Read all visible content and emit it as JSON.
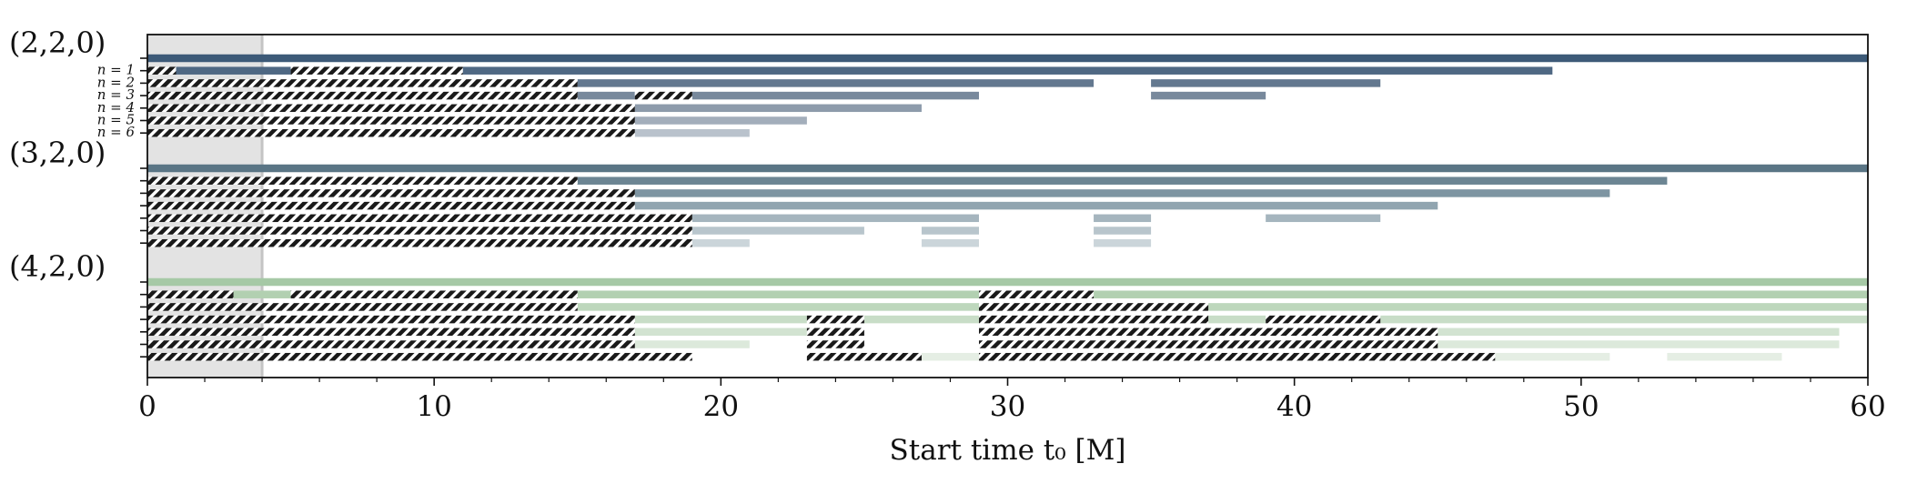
{
  "chart_data": {
    "type": "bar",
    "subtype": "interval-timeline",
    "xlabel": "Start time t₀ [M]",
    "xlim": [
      0,
      60
    ],
    "xticks": [
      0,
      10,
      20,
      30,
      40,
      50,
      60
    ],
    "shaded_region": [
      0,
      4
    ],
    "hatch_color": "#1a1a1a",
    "groups": [
      {
        "label": "(2,2,0)",
        "rows": [
          {
            "label": "",
            "color": "#3d5a78",
            "intervals": [
              [
                0,
                60
              ]
            ],
            "hatched": []
          },
          {
            "label": "n = 1",
            "color": "#4f6883",
            "intervals": [
              [
                1,
                5
              ],
              [
                11,
                49
              ]
            ],
            "hatched": [
              [
                0,
                1
              ],
              [
                5,
                11
              ]
            ]
          },
          {
            "label": "n = 2",
            "color": "#63788f",
            "intervals": [
              [
                15,
                33
              ],
              [
                35,
                43
              ]
            ],
            "hatched": [
              [
                0,
                15
              ]
            ]
          },
          {
            "label": "n = 3",
            "color": "#78899c",
            "intervals": [
              [
                15,
                17
              ],
              [
                19,
                29
              ],
              [
                35,
                39
              ]
            ],
            "hatched": [
              [
                0,
                15
              ],
              [
                17,
                19
              ]
            ]
          },
          {
            "label": "n = 4",
            "color": "#8d9bab",
            "intervals": [
              [
                17,
                27
              ]
            ],
            "hatched": [
              [
                0,
                17
              ]
            ]
          },
          {
            "label": "n = 5",
            "color": "#a3aebb",
            "intervals": [
              [
                17,
                23
              ]
            ],
            "hatched": [
              [
                0,
                17
              ]
            ]
          },
          {
            "label": "n = 6",
            "color": "#b9c2cc",
            "intervals": [
              [
                17,
                21
              ]
            ],
            "hatched": [
              [
                0,
                17
              ]
            ]
          }
        ]
      },
      {
        "label": "(3,2,0)",
        "rows": [
          {
            "label": "",
            "color": "#5a7585",
            "intervals": [
              [
                0,
                60
              ]
            ],
            "hatched": []
          },
          {
            "label": "",
            "color": "#6c8593",
            "intervals": [
              [
                15,
                53
              ]
            ],
            "hatched": [
              [
                0,
                15
              ]
            ]
          },
          {
            "label": "",
            "color": "#7e95a2",
            "intervals": [
              [
                17,
                51
              ]
            ],
            "hatched": [
              [
                0,
                17
              ]
            ]
          },
          {
            "label": "",
            "color": "#91a5b0",
            "intervals": [
              [
                17,
                45
              ]
            ],
            "hatched": [
              [
                0,
                17
              ]
            ]
          },
          {
            "label": "",
            "color": "#a5b5be",
            "intervals": [
              [
                19,
                29
              ],
              [
                33,
                35
              ],
              [
                39,
                43
              ]
            ],
            "hatched": [
              [
                0,
                19
              ]
            ]
          },
          {
            "label": "",
            "color": "#b8c5cc",
            "intervals": [
              [
                19,
                25
              ],
              [
                27,
                29
              ],
              [
                33,
                35
              ]
            ],
            "hatched": [
              [
                0,
                19
              ]
            ]
          },
          {
            "label": "",
            "color": "#cbd5da",
            "intervals": [
              [
                19,
                21
              ],
              [
                27,
                29
              ],
              [
                33,
                35
              ]
            ],
            "hatched": [
              [
                0,
                19
              ]
            ]
          }
        ]
      },
      {
        "label": "(4,2,0)",
        "rows": [
          {
            "label": "",
            "color": "#a6c9a6",
            "intervals": [
              [
                0,
                60
              ]
            ],
            "hatched": []
          },
          {
            "label": "",
            "color": "#b2d0b1",
            "intervals": [
              [
                3,
                5
              ],
              [
                15,
                29
              ],
              [
                33,
                60
              ]
            ],
            "hatched": [
              [
                0,
                3
              ],
              [
                5,
                15
              ],
              [
                29,
                33
              ]
            ]
          },
          {
            "label": "",
            "color": "#bdd7bc",
            "intervals": [
              [
                15,
                29
              ],
              [
                37,
                60
              ]
            ],
            "hatched": [
              [
                0,
                15
              ],
              [
                29,
                37
              ]
            ]
          },
          {
            "label": "",
            "color": "#c8ddc7",
            "intervals": [
              [
                17,
                23
              ],
              [
                25,
                29
              ],
              [
                37,
                39
              ],
              [
                43,
                60
              ]
            ],
            "hatched": [
              [
                0,
                17
              ],
              [
                23,
                25
              ],
              [
                29,
                37
              ],
              [
                39,
                43
              ]
            ]
          },
          {
            "label": "",
            "color": "#d2e3d1",
            "intervals": [
              [
                17,
                23
              ],
              [
                45,
                59
              ]
            ],
            "hatched": [
              [
                0,
                17
              ],
              [
                23,
                25
              ],
              [
                29,
                45
              ]
            ]
          },
          {
            "label": "",
            "color": "#dce9db",
            "intervals": [
              [
                17,
                21
              ],
              [
                45,
                59
              ]
            ],
            "hatched": [
              [
                0,
                17
              ],
              [
                23,
                25
              ],
              [
                29,
                45
              ]
            ]
          },
          {
            "label": "",
            "color": "#e5eee4",
            "intervals": [
              [
                27,
                29
              ],
              [
                47,
                51
              ],
              [
                53,
                57
              ]
            ],
            "hatched": [
              [
                0,
                19
              ],
              [
                23,
                27
              ],
              [
                29,
                47
              ]
            ]
          }
        ]
      }
    ]
  }
}
